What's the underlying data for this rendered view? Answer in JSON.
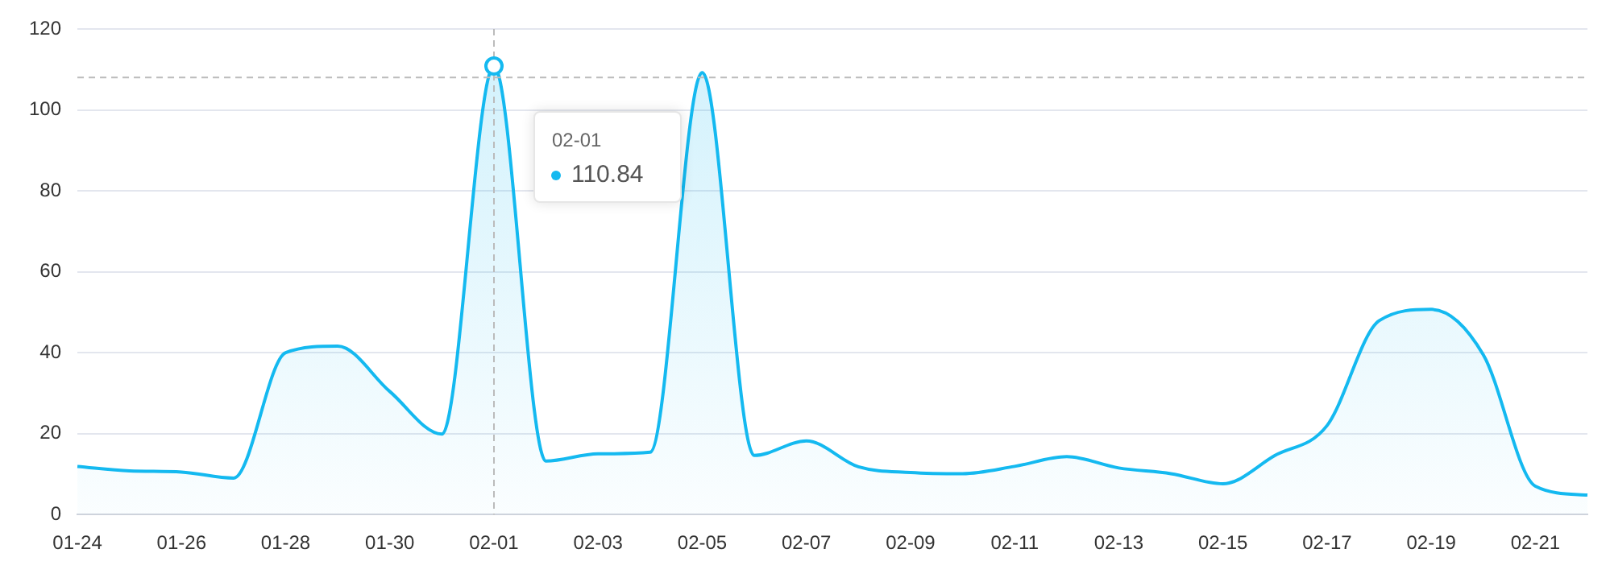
{
  "chart_data": {
    "type": "area",
    "categories": [
      "01-24",
      null,
      "01-26",
      null,
      "01-28",
      null,
      "01-30",
      null,
      "02-01",
      null,
      "02-03",
      null,
      "02-05",
      null,
      "02-07",
      null,
      "02-09",
      null,
      "02-11",
      null,
      "02-13",
      null,
      "02-15",
      null,
      "02-17",
      null,
      "02-19",
      null,
      "02-21",
      null
    ],
    "series": [
      {
        "color": "#14b9f0",
        "values": [
          11.9,
          10.8,
          10.5,
          9.0,
          40,
          41.6,
          30.4,
          19.9,
          110.84,
          13.2,
          15.0,
          15.4,
          109.2,
          14.6,
          18.2,
          11.8,
          10.4,
          10.1,
          11.9,
          14.3,
          11.5,
          10.1,
          7.6,
          14.6,
          22,
          47.9,
          50.7,
          39.5,
          7.0,
          4.8
        ]
      }
    ],
    "ylim": [
      0,
      120
    ],
    "yticks": [
      0,
      20,
      40,
      60,
      80,
      100,
      120
    ],
    "grid": "y",
    "legend": false,
    "marker": "none",
    "ref_lines": [
      {
        "axis": "x",
        "value": "02-01",
        "color": "#bbbbbb",
        "line_style": "dashed"
      },
      {
        "axis": "y",
        "value": 108,
        "color": "#bbbbbb",
        "line_style": "dashed"
      }
    ],
    "annotations": [
      "02-01",
      "110.84"
    ]
  }
}
